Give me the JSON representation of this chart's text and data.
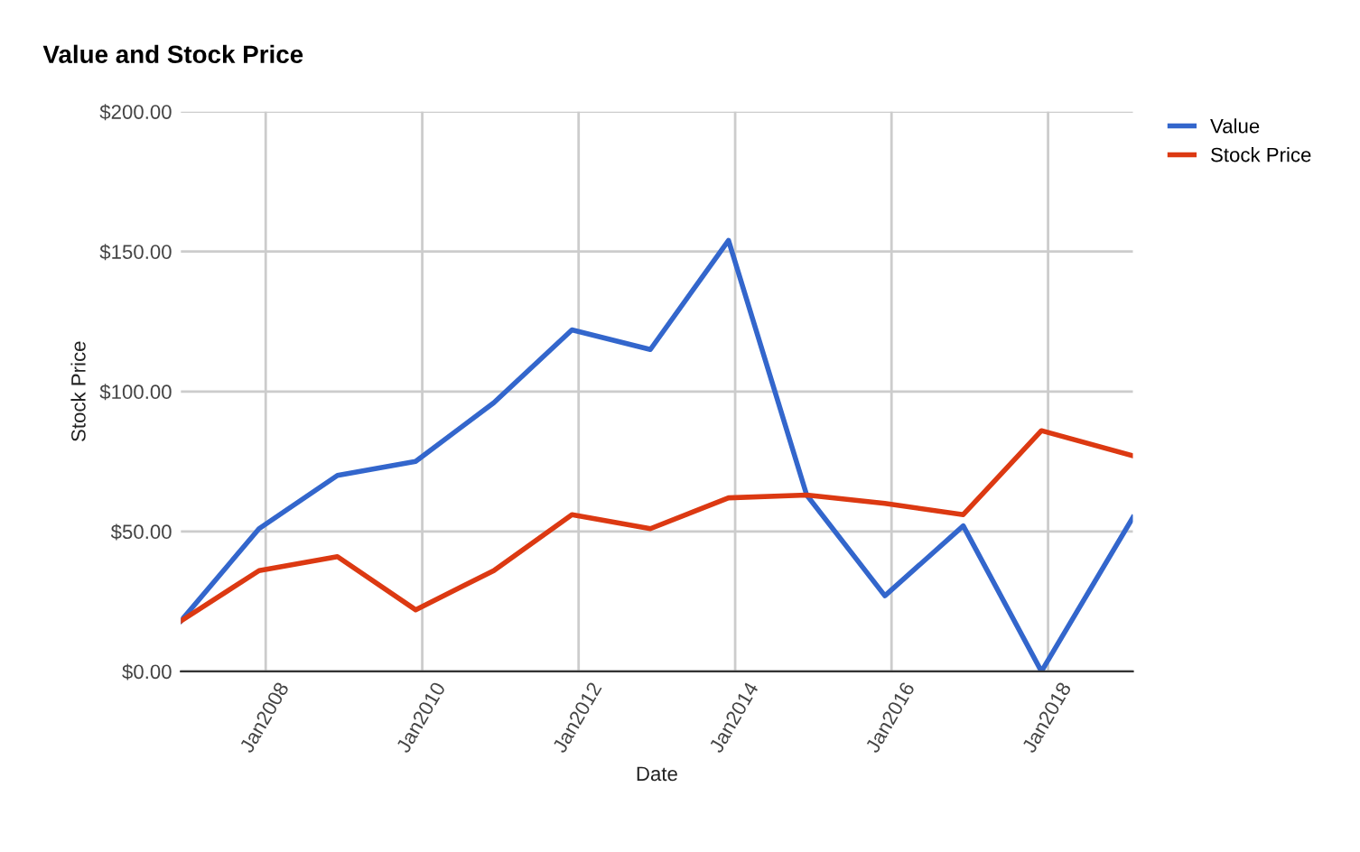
{
  "chart_data": {
    "type": "line",
    "title": "Value and Stock Price",
    "xlabel": "Date",
    "ylabel": "Stock Price",
    "x": [
      "2006-12",
      "2007-12",
      "2008-12",
      "2009-12",
      "2010-12",
      "2011-12",
      "2012-12",
      "2013-12",
      "2014-12",
      "2015-12",
      "2016-12",
      "2017-12",
      "2019-02"
    ],
    "series": [
      {
        "name": "Value",
        "color": "#3366cc",
        "values": [
          18,
          51,
          70,
          75,
          96,
          122,
          115,
          154,
          63,
          27,
          52,
          0,
          55
        ]
      },
      {
        "name": "Stock Price",
        "color": "#dc3912",
        "values": [
          18,
          36,
          41,
          22,
          36,
          56,
          51,
          62,
          63,
          60,
          56,
          86,
          77
        ]
      }
    ],
    "xlim": [
      "2006-12",
      "2019-02"
    ],
    "xticks": [
      {
        "value": "2008-01",
        "label": "Jan2008"
      },
      {
        "value": "2010-01",
        "label": "Jan2010"
      },
      {
        "value": "2012-01",
        "label": "Jan2012"
      },
      {
        "value": "2014-01",
        "label": "Jan2014"
      },
      {
        "value": "2016-01",
        "label": "Jan2016"
      },
      {
        "value": "2018-01",
        "label": "Jan2018"
      }
    ],
    "ylim": [
      0,
      200
    ],
    "yticks": [
      {
        "value": 0,
        "label": "$0.00"
      },
      {
        "value": 50,
        "label": "$50.00"
      },
      {
        "value": 100,
        "label": "$100.00"
      },
      {
        "value": 150,
        "label": "$150.00"
      },
      {
        "value": 200,
        "label": "$200.00"
      }
    ],
    "grid": true,
    "legend": "top right",
    "marker": "none",
    "line_style": "solid"
  }
}
